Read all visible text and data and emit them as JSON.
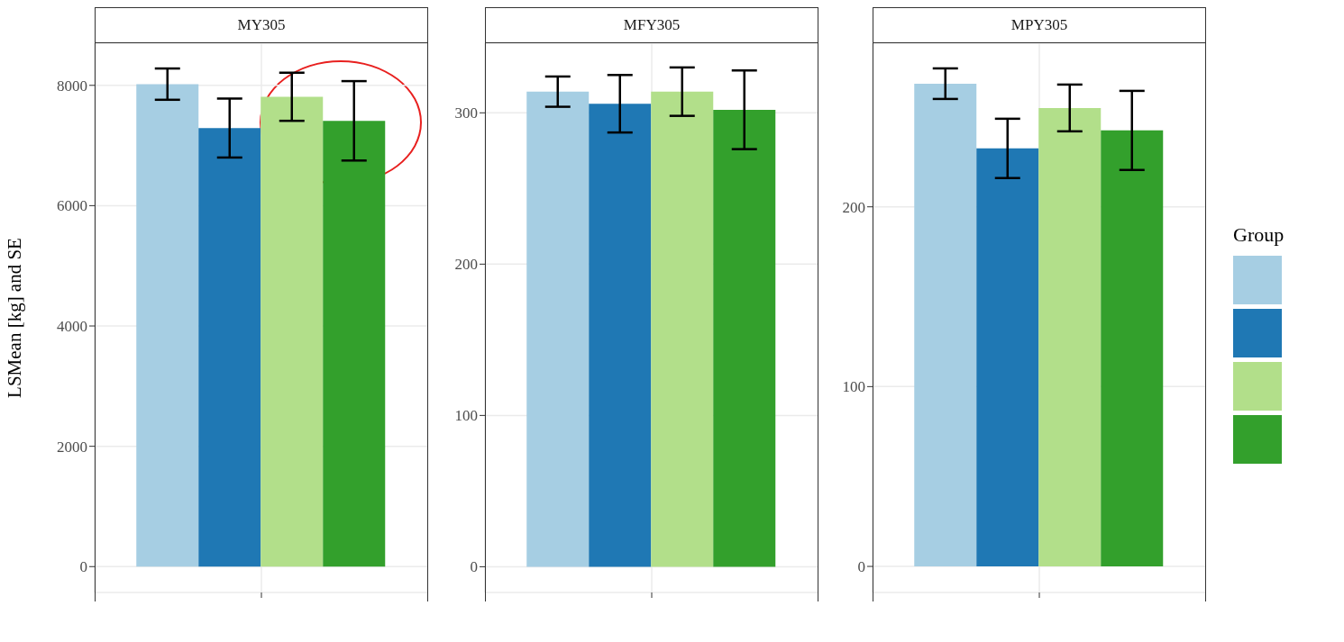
{
  "chart_data": [
    {
      "type": "bar",
      "title": "MY305",
      "ylabel": "LSMean [kg] and SE",
      "categories": [
        null
      ],
      "series": [
        {
          "color": "#a6cee3",
          "values": [
            8020
          ],
          "errors": [
            260
          ]
        },
        {
          "color": "#1f78b4",
          "values": [
            7290
          ],
          "errors": [
            490
          ]
        },
        {
          "color": "#b2df8a",
          "values": [
            7810
          ],
          "errors": [
            400
          ]
        },
        {
          "color": "#33a02c",
          "values": [
            7410
          ],
          "errors": [
            660
          ]
        }
      ],
      "ylim": [
        -430,
        8700
      ],
      "yticks": [
        0,
        2000,
        4000,
        6000,
        8000
      ],
      "grid": true
    },
    {
      "type": "bar",
      "title": "MFY305",
      "categories": [
        null
      ],
      "series": [
        {
          "color": "#a6cee3",
          "values": [
            314
          ],
          "errors": [
            10
          ]
        },
        {
          "color": "#1f78b4",
          "values": [
            306
          ],
          "errors": [
            19
          ]
        },
        {
          "color": "#b2df8a",
          "values": [
            314
          ],
          "errors": [
            16
          ]
        },
        {
          "color": "#33a02c",
          "values": [
            302
          ],
          "errors": [
            26
          ]
        }
      ],
      "ylim": [
        -17,
        346
      ],
      "yticks": [
        0,
        100,
        200,
        300
      ],
      "grid": true
    },
    {
      "type": "bar",
      "title": "MPY305",
      "legend_title": "Group",
      "categories": [
        null
      ],
      "series": [
        {
          "color": "#a6cee3",
          "values": [
            268.5
          ],
          "errors": [
            8.5
          ]
        },
        {
          "color": "#1f78b4",
          "values": [
            232.5
          ],
          "errors": [
            16.5
          ]
        },
        {
          "color": "#b2df8a",
          "values": [
            255
          ],
          "errors": [
            13
          ]
        },
        {
          "color": "#33a02c",
          "values": [
            242.5
          ],
          "errors": [
            22
          ]
        }
      ],
      "ylim": [
        -14.5,
        291
      ],
      "yticks": [
        0,
        100,
        200
      ],
      "grid": true
    }
  ]
}
